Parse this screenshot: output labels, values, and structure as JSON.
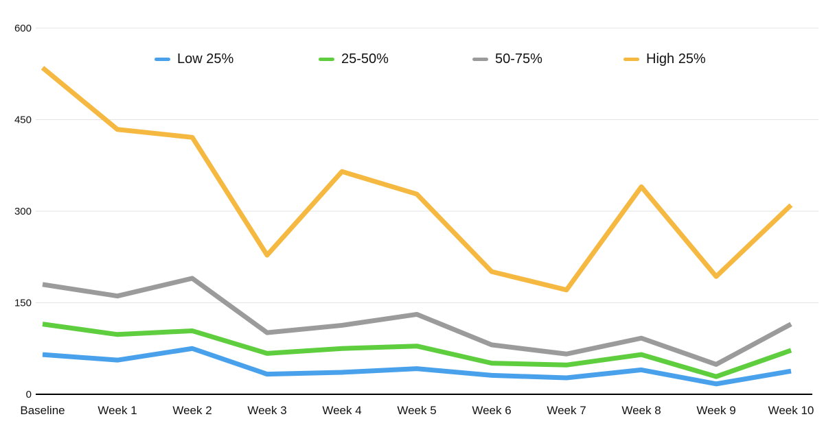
{
  "chart_data": {
    "type": "line",
    "title": "",
    "categories": [
      "Baseline",
      "Week 1",
      "Week 2",
      "Week 3",
      "Week 4",
      "Week 5",
      "Week 6",
      "Week 7",
      "Week 8",
      "Week 9",
      "Week 10"
    ],
    "series": [
      {
        "name": "Low 25%",
        "color": "#4AA1EB",
        "values": [
          65,
          56,
          75,
          33,
          36,
          42,
          31,
          27,
          40,
          17,
          38
        ]
      },
      {
        "name": "25-50%",
        "color": "#5FCE3E",
        "values": [
          115,
          98,
          104,
          67,
          75,
          79,
          51,
          48,
          65,
          29,
          72
        ]
      },
      {
        "name": "50-75%",
        "color": "#9B9B9B",
        "values": [
          180,
          161,
          190,
          101,
          113,
          131,
          81,
          66,
          92,
          49,
          115
        ]
      },
      {
        "name": "High 25%",
        "color": "#F5B942",
        "values": [
          535,
          434,
          421,
          228,
          365,
          328,
          201,
          171,
          340,
          193,
          310
        ]
      }
    ],
    "y_axis": {
      "min": 0,
      "max": 600,
      "ticks": [
        0,
        150,
        300,
        450,
        600
      ]
    },
    "legend": {
      "position": "top"
    },
    "grid": true
  },
  "colors": {
    "background": "#FFFFFF",
    "gridline": "#E3E3E3",
    "axis": "#000000",
    "text": "#111111"
  }
}
